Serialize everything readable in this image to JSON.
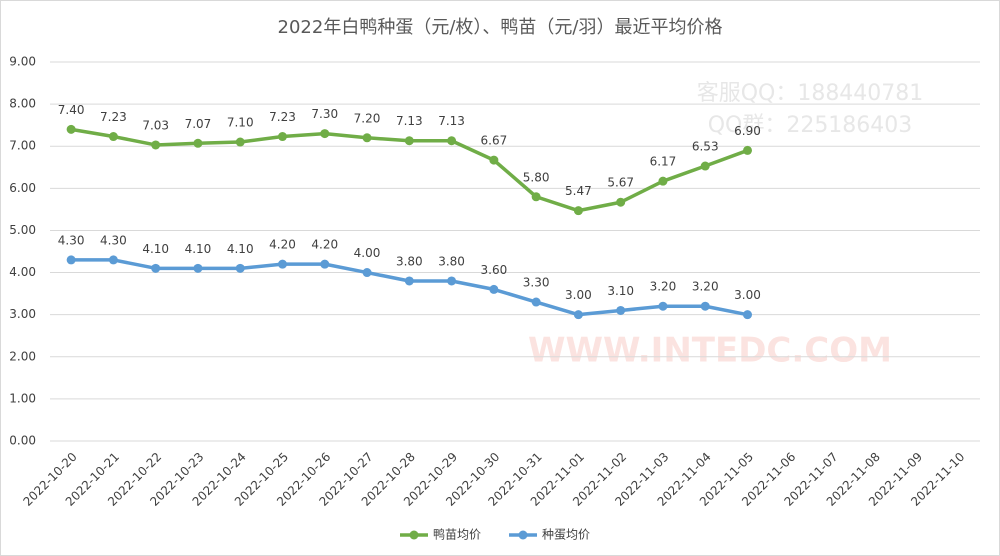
{
  "chart_data": {
    "type": "line",
    "title": "2022年白鸭种蛋（元/枚）、鸭苗（元/羽）最近平均价格",
    "categories": [
      "2022-10-20",
      "2022-10-21",
      "2022-10-22",
      "2022-10-23",
      "2022-10-24",
      "2022-10-25",
      "2022-10-26",
      "2022-10-27",
      "2022-10-28",
      "2022-10-29",
      "2022-10-30",
      "2022-10-31",
      "2022-11-01",
      "2022-11-02",
      "2022-11-03",
      "2022-11-04",
      "2022-11-05",
      "2022-11-06",
      "2022-11-07",
      "2022-11-08",
      "2022-11-09",
      "2022-11-10"
    ],
    "series": [
      {
        "name": "鸭苗均价",
        "color": "#70ad47",
        "values": [
          7.4,
          7.23,
          7.03,
          7.07,
          7.1,
          7.23,
          7.3,
          7.2,
          7.13,
          7.13,
          6.67,
          5.8,
          5.47,
          5.67,
          6.17,
          6.53,
          6.9,
          null,
          null,
          null,
          null,
          null
        ],
        "value_labels": [
          "7.40",
          "7.23",
          "7.03",
          "7.07",
          "7.10",
          "7.23",
          "7.30",
          "7.20",
          "7.13",
          "7.13",
          "6.67",
          "5.80",
          "5.47",
          "5.67",
          "6.17",
          "6.53",
          "6.90",
          null,
          null,
          null,
          null,
          null
        ]
      },
      {
        "name": "种蛋均价",
        "color": "#5b9bd5",
        "values": [
          4.3,
          4.3,
          4.1,
          4.1,
          4.1,
          4.2,
          4.2,
          4.0,
          3.8,
          3.8,
          3.6,
          3.3,
          3.0,
          3.1,
          3.2,
          3.2,
          3.0,
          null,
          null,
          null,
          null,
          null
        ],
        "value_labels": [
          "4.30",
          "4.30",
          "4.10",
          "4.10",
          "4.10",
          "4.20",
          "4.20",
          "4.00",
          "3.80",
          "3.80",
          "3.60",
          "3.30",
          "3.00",
          "3.10",
          "3.20",
          "3.20",
          "3.00",
          null,
          null,
          null,
          null,
          null
        ]
      }
    ],
    "ylim": [
      0,
      9
    ],
    "yticks": [
      {
        "value": 0,
        "label": "0.00"
      },
      {
        "value": 1,
        "label": "1.00"
      },
      {
        "value": 2,
        "label": "2.00"
      },
      {
        "value": 3,
        "label": "3.00"
      },
      {
        "value": 4,
        "label": "4.00"
      },
      {
        "value": 5,
        "label": "5.00"
      },
      {
        "value": 6,
        "label": "6.00"
      },
      {
        "value": 7,
        "label": "7.00"
      },
      {
        "value": 8,
        "label": "8.00"
      },
      {
        "value": 9,
        "label": "9.00"
      }
    ],
    "grid": true,
    "legend": "bottom",
    "watermarks": [
      "客服QQ：188440781",
      "QQ群：225186403",
      "WWW.INTEDC.COM"
    ]
  }
}
